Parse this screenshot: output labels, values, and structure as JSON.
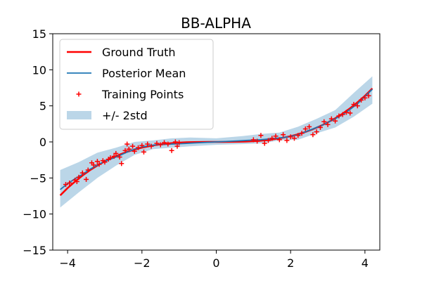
{
  "chart_data": {
    "type": "line",
    "title": "BB-ALPHA",
    "xlabel": "",
    "ylabel": "",
    "xlim": [
      -4.4,
      4.4
    ],
    "ylim": [
      -15,
      15
    ],
    "x_ticks": [
      -4,
      -2,
      0,
      2,
      4
    ],
    "y_ticks": [
      -15,
      -10,
      -5,
      0,
      5,
      10,
      15
    ],
    "x_tick_labels": [
      "−4",
      "−2",
      "0",
      "2",
      "4"
    ],
    "y_tick_labels": [
      "−15",
      "−10",
      "−5",
      "0",
      "5",
      "10",
      "15"
    ],
    "grid": false,
    "legend_position": "upper-left",
    "series": [
      {
        "name": "Ground Truth",
        "kind": "line",
        "color": "#ff0000",
        "x": [
          -4.2,
          -4.0,
          -3.8,
          -3.6,
          -3.4,
          -3.2,
          -3.0,
          -2.8,
          -2.6,
          -2.4,
          -2.2,
          -2.0,
          -1.8,
          -1.6,
          -1.4,
          -1.2,
          -1.0,
          -0.8,
          -0.6,
          -0.4,
          -0.2,
          0.0,
          0.2,
          0.4,
          0.6,
          0.8,
          1.0,
          1.2,
          1.4,
          1.6,
          1.8,
          2.0,
          2.2,
          2.4,
          2.6,
          2.8,
          3.0,
          3.2,
          3.4,
          3.6,
          3.8,
          4.0,
          4.2
        ],
        "y": [
          -7.41,
          -6.4,
          -5.49,
          -4.67,
          -3.93,
          -3.28,
          -2.7,
          -2.2,
          -1.76,
          -1.38,
          -1.06,
          -0.8,
          -0.58,
          -0.41,
          -0.27,
          -0.17,
          -0.1,
          -0.05,
          -0.02,
          -0.01,
          0.0,
          0.0,
          0.0,
          0.01,
          0.02,
          0.05,
          0.1,
          0.17,
          0.27,
          0.41,
          0.58,
          0.8,
          1.06,
          1.38,
          1.76,
          2.2,
          2.7,
          3.28,
          3.93,
          4.67,
          5.49,
          6.4,
          7.41
        ]
      },
      {
        "name": "Posterior Mean",
        "kind": "line",
        "color": "#1f77b4",
        "x": [
          -4.2,
          -4.0,
          -3.8,
          -3.6,
          -3.4,
          -3.2,
          -3.0,
          -2.8,
          -2.6,
          -2.4,
          -2.2,
          -2.0,
          -1.8,
          -1.6,
          -1.4,
          -1.2,
          -1.0,
          -0.8,
          -0.6,
          -0.4,
          -0.2,
          0.0,
          0.2,
          0.4,
          0.6,
          0.8,
          1.0,
          1.2,
          1.4,
          1.6,
          1.8,
          2.0,
          2.2,
          2.4,
          2.6,
          2.8,
          3.0,
          3.2,
          3.4,
          3.6,
          3.8,
          4.0,
          4.2
        ],
        "y": [
          -6.6,
          -5.8,
          -5.1,
          -4.5,
          -3.8,
          -3.2,
          -2.7,
          -2.3,
          -1.9,
          -1.4,
          -1.0,
          -0.7,
          -0.5,
          -0.4,
          -0.35,
          -0.3,
          -0.25,
          -0.2,
          -0.15,
          -0.1,
          -0.05,
          0.0,
          0.05,
          0.1,
          0.15,
          0.2,
          0.25,
          0.3,
          0.4,
          0.5,
          0.6,
          0.75,
          1.0,
          1.4,
          1.8,
          2.2,
          2.7,
          3.2,
          3.8,
          4.5,
          5.3,
          6.3,
          7.3
        ]
      },
      {
        "name": "Training Points",
        "kind": "scatter",
        "color": "#ff0000",
        "x": [
          -4.05,
          -3.95,
          -3.8,
          -3.75,
          -3.7,
          -3.6,
          -3.5,
          -3.45,
          -3.35,
          -3.3,
          -3.2,
          -3.15,
          -3.05,
          -3.0,
          -2.9,
          -2.85,
          -2.75,
          -2.7,
          -2.6,
          -2.55,
          -2.45,
          -2.4,
          -2.35,
          -2.25,
          -2.2,
          -2.1,
          -2.0,
          -1.95,
          -1.85,
          -1.75,
          -1.6,
          -1.5,
          -1.4,
          -1.3,
          -1.2,
          -1.1,
          -1.05,
          -1.0,
          1.0,
          1.1,
          1.2,
          1.3,
          1.4,
          1.5,
          1.6,
          1.7,
          1.8,
          1.9,
          2.0,
          2.1,
          2.2,
          2.3,
          2.4,
          2.5,
          2.6,
          2.7,
          2.8,
          2.9,
          3.0,
          3.1,
          3.2,
          3.3,
          3.4,
          3.5,
          3.6,
          3.7,
          3.8,
          3.9,
          4.0,
          4.1
        ],
        "y": [
          -5.9,
          -5.7,
          -5.3,
          -5.5,
          -4.9,
          -4.3,
          -5.2,
          -3.9,
          -2.9,
          -3.2,
          -2.7,
          -3.1,
          -2.6,
          -2.8,
          -2.4,
          -2.2,
          -2.0,
          -1.6,
          -2.1,
          -3.0,
          -1.2,
          -0.3,
          -1.0,
          -0.6,
          -1.3,
          -0.8,
          -0.5,
          -1.4,
          -0.3,
          -0.6,
          -0.2,
          -0.4,
          -0.1,
          -0.3,
          -1.2,
          0.0,
          -0.6,
          -0.1,
          0.3,
          0.1,
          0.9,
          -0.2,
          0.2,
          0.5,
          0.8,
          0.3,
          1.0,
          0.2,
          0.7,
          0.5,
          0.9,
          1.2,
          1.8,
          2.1,
          1.0,
          1.4,
          2.0,
          2.8,
          2.4,
          3.2,
          2.9,
          3.6,
          3.8,
          4.1,
          4.0,
          5.2,
          5.0,
          5.8,
          6.1,
          6.4
        ]
      },
      {
        "name": "+/- 2std",
        "kind": "band",
        "color": "#1f77b4",
        "opacity": 0.3,
        "x": [
          -4.2,
          -3.7,
          -3.2,
          -2.7,
          -2.2,
          -1.7,
          -1.2,
          -0.7,
          0.0,
          0.7,
          1.2,
          1.7,
          2.2,
          2.7,
          3.2,
          3.7,
          4.2
        ],
        "lower": [
          -9.1,
          -7.0,
          -5.0,
          -3.3,
          -1.8,
          -1.0,
          -0.8,
          -0.6,
          -0.4,
          -0.3,
          -0.2,
          0.2,
          0.3,
          1.2,
          2.0,
          3.5,
          5.3
        ],
        "upper": [
          -3.9,
          -2.8,
          -1.5,
          -0.8,
          0.0,
          0.2,
          0.5,
          0.6,
          0.5,
          0.8,
          1.1,
          1.3,
          2.1,
          3.2,
          4.4,
          6.8,
          9.1
        ]
      }
    ]
  }
}
